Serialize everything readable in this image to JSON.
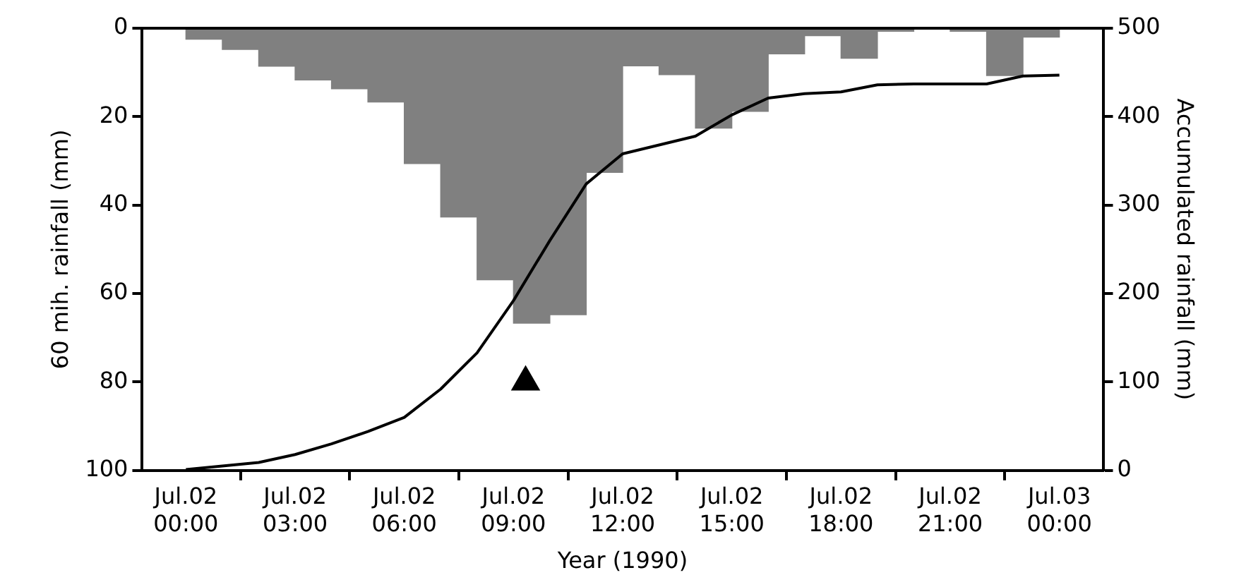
{
  "chart_data": {
    "type": "bar",
    "xlabel": "Year (1990)",
    "ylabel": "60 mih. rainfall (mm)",
    "y2label": "Accumulated rainfall (mm)",
    "xlim": [
      "1990-07-01T22:48",
      "1990-07-03T01:12"
    ],
    "xticks": [
      {
        "value": "1990-07-02T00:00",
        "label": "Jul.02\n00:00"
      },
      {
        "value": "1990-07-02T03:00",
        "label": "Jul.02\n03:00"
      },
      {
        "value": "1990-07-02T06:00",
        "label": "Jul.02\n06:00"
      },
      {
        "value": "1990-07-02T09:00",
        "label": "Jul.02\n09:00"
      },
      {
        "value": "1990-07-02T12:00",
        "label": "Jul.02\n12:00"
      },
      {
        "value": "1990-07-02T15:00",
        "label": "Jul.02\n15:00"
      },
      {
        "value": "1990-07-02T18:00",
        "label": "Jul.02\n18:00"
      },
      {
        "value": "1990-07-02T21:00",
        "label": "Jul.02\n21:00"
      },
      {
        "value": "1990-07-03T00:00",
        "label": "Jul.03\n00:00"
      }
    ],
    "ylim": [
      100,
      0
    ],
    "yticks": [
      0,
      20,
      40,
      60,
      80,
      100
    ],
    "y2lim": [
      0,
      500
    ],
    "y2ticks": [
      0,
      100,
      200,
      300,
      400,
      500
    ],
    "series": [
      {
        "color": "#808080",
        "x": [
          "1990-07-02T00:30",
          "1990-07-02T01:30",
          "1990-07-02T02:30",
          "1990-07-02T03:30",
          "1990-07-02T04:30",
          "1990-07-02T05:30",
          "1990-07-02T06:30",
          "1990-07-02T07:30",
          "1990-07-02T08:30",
          "1990-07-02T09:30",
          "1990-07-02T10:30",
          "1990-07-02T11:30",
          "1990-07-02T12:30",
          "1990-07-02T13:30",
          "1990-07-02T14:30",
          "1990-07-02T15:30",
          "1990-07-02T16:30",
          "1990-07-02T17:30",
          "1990-07-02T18:30",
          "1990-07-02T19:30",
          "1990-07-02T20:30",
          "1990-07-02T21:30",
          "1990-07-02T22:30",
          "1990-07-02T23:30"
        ],
        "values": [
          2.5,
          4.8,
          8.6,
          11.7,
          13.7,
          16.7,
          30.6,
          42.7,
          56.9,
          66.7,
          64.8,
          32.6,
          8.5,
          10.5,
          22.6,
          18.8,
          5.8,
          1.7,
          6.8,
          0.7,
          null,
          0.7,
          10.7,
          2
        ]
      },
      {
        "type": "line",
        "axis": "y2",
        "color": "#000000",
        "x": [
          "1990-07-02T00:00",
          "1990-07-02T01:00",
          "1990-07-02T02:00",
          "1990-07-02T03:00",
          "1990-07-02T04:00",
          "1990-07-02T05:00",
          "1990-07-02T06:00",
          "1990-07-02T07:00",
          "1990-07-02T08:00",
          "1990-07-02T09:00",
          "1990-07-02T10:00",
          "1990-07-02T11:00",
          "1990-07-02T12:00",
          "1990-07-02T13:00",
          "1990-07-02T14:00",
          "1990-07-02T15:00",
          "1990-07-02T16:00",
          "1990-07-02T17:00",
          "1990-07-02T18:00",
          "1990-07-02T19:00",
          "1990-07-02T20:00",
          "1990-07-02T21:00",
          "1990-07-02T22:00",
          "1990-07-02T23:00",
          "1990-07-03T00:00"
        ],
        "values": [
          1,
          5,
          9,
          18,
          30,
          44,
          60,
          92,
          133,
          192,
          260,
          324,
          358,
          368,
          378,
          402,
          421,
          426,
          428,
          436,
          437,
          437,
          437,
          446,
          447
        ]
      },
      {
        "type": "scatter",
        "color": "#000000",
        "marker": "triangle",
        "x": [
          "1990-07-02T09:20"
        ],
        "values": [
          80
        ]
      }
    ]
  }
}
